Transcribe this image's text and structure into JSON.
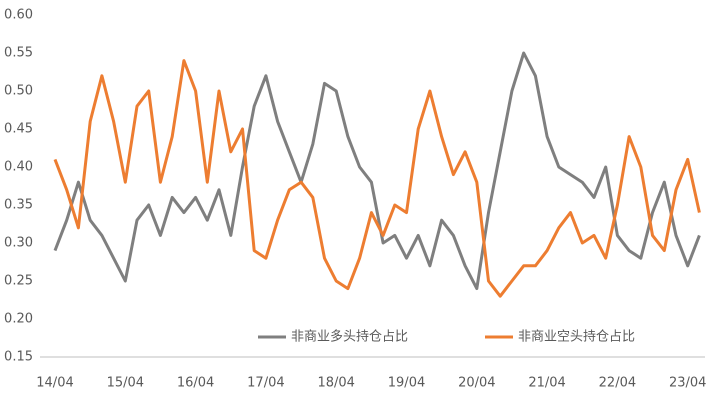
{
  "chart_data": {
    "type": "line",
    "categories": [
      "14/04",
      null,
      null,
      null,
      null,
      null,
      "15/04",
      null,
      null,
      null,
      null,
      null,
      "16/04",
      null,
      null,
      null,
      null,
      null,
      "17/04",
      null,
      null,
      null,
      null,
      null,
      "18/04",
      null,
      null,
      null,
      null,
      null,
      "19/04",
      null,
      null,
      null,
      null,
      null,
      "20/04",
      null,
      null,
      null,
      null,
      null,
      "21/04",
      null,
      null,
      null,
      null,
      null,
      "22/04",
      null,
      null,
      null,
      null,
      null,
      "23/04",
      null
    ],
    "series": [
      {
        "name": "非商业多头持仓占比",
        "color": "#7f7f7f",
        "values": [
          0.29,
          0.33,
          0.38,
          0.33,
          0.31,
          0.28,
          0.25,
          0.33,
          0.35,
          0.31,
          0.36,
          0.34,
          0.36,
          0.33,
          0.37,
          0.31,
          0.4,
          0.48,
          0.52,
          0.46,
          0.42,
          0.38,
          0.43,
          0.51,
          0.5,
          0.44,
          0.4,
          0.38,
          0.3,
          0.31,
          0.28,
          0.31,
          0.27,
          0.33,
          0.31,
          0.27,
          0.24,
          0.34,
          0.42,
          0.5,
          0.55,
          0.52,
          0.44,
          0.4,
          0.39,
          0.38,
          0.36,
          0.4,
          0.31,
          0.29,
          0.28,
          0.34,
          0.38,
          0.31,
          0.27,
          0.31
        ]
      },
      {
        "name": "非商业空头持仓占比",
        "color": "#ed7d31",
        "values": [
          0.41,
          0.37,
          0.32,
          0.46,
          0.52,
          0.46,
          0.38,
          0.48,
          0.5,
          0.38,
          0.44,
          0.54,
          0.5,
          0.38,
          0.5,
          0.42,
          0.45,
          0.29,
          0.28,
          0.33,
          0.37,
          0.38,
          0.36,
          0.28,
          0.25,
          0.24,
          0.28,
          0.34,
          0.31,
          0.35,
          0.34,
          0.45,
          0.5,
          0.44,
          0.39,
          0.42,
          0.38,
          0.25,
          0.23,
          0.25,
          0.27,
          0.27,
          0.29,
          0.32,
          0.34,
          0.3,
          0.31,
          0.28,
          0.35,
          0.44,
          0.4,
          0.31,
          0.29,
          0.37,
          0.41,
          0.34
        ]
      }
    ],
    "ylim": [
      0.15,
      0.6
    ],
    "yticks": [
      {
        "value": 0.15,
        "label": "0.15"
      },
      {
        "value": 0.2,
        "label": "0.20"
      },
      {
        "value": 0.25,
        "label": "0.25"
      },
      {
        "value": 0.3,
        "label": "0.30"
      },
      {
        "value": 0.35,
        "label": "0.35"
      },
      {
        "value": 0.4,
        "label": "0.40"
      },
      {
        "value": 0.45,
        "label": "0.45"
      },
      {
        "value": 0.5,
        "label": "0.50"
      },
      {
        "value": 0.55,
        "label": "0.55"
      },
      {
        "value": 0.6,
        "label": "0.60"
      }
    ],
    "grid": false
  }
}
